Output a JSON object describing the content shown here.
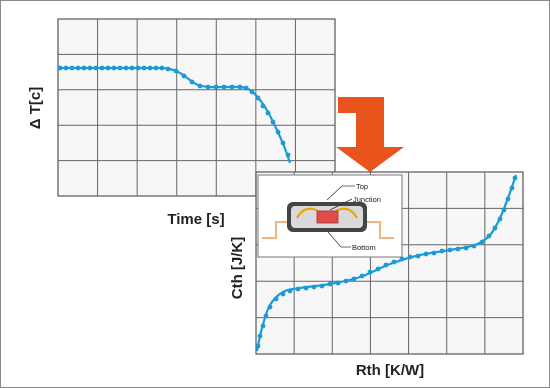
{
  "colors": {
    "curve": "#1a9bd7",
    "grid": "#666666",
    "panel_bg": "#f7f7f7",
    "arrow": "#e8541c",
    "chip_red": "#e24b4b",
    "chip_wire": "#f0a000",
    "trace": "#f2b57e"
  },
  "top_chart": {
    "xlabel": "Time [s]",
    "ylabel": "Δ T[c]",
    "curve_name": "temperature-decay-curve"
  },
  "bottom_chart": {
    "xlabel": "Rth [K/W]",
    "ylabel": "Cth [J/K]",
    "curve_name": "structure-function-curve"
  },
  "inset": {
    "labels": {
      "top": "Top",
      "junction": "Junction",
      "bottom": "Bottom"
    }
  },
  "arrow_icon": "down-arrow-icon"
}
